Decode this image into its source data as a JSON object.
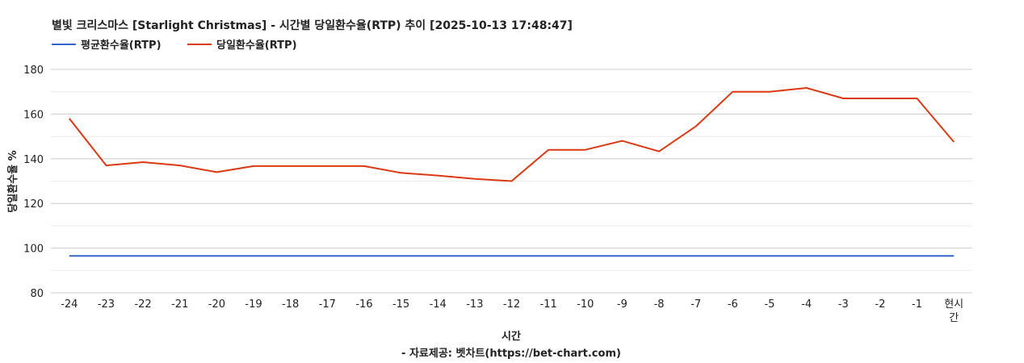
{
  "chart_data": {
    "type": "line",
    "title": "별빛 크리스마스 [Starlight Christmas] - 시간별 당일환수율(RTP) 추이 [2025-10-13 17:48:47]",
    "xlabel": "시간",
    "source_label": "- 자료제공: 벳차트(https://bet-chart.com)",
    "ylabel": "당일환수율 %",
    "ylim": [
      80,
      180
    ],
    "yticks": [
      80,
      100,
      120,
      140,
      160,
      180
    ],
    "grid": true,
    "legend_position": "top-left",
    "categories": [
      "-24",
      "-23",
      "-22",
      "-21",
      "-20",
      "-19",
      "-18",
      "-17",
      "-16",
      "-15",
      "-14",
      "-13",
      "-12",
      "-11",
      "-10",
      "-9",
      "-8",
      "-7",
      "-6",
      "-5",
      "-4",
      "-3",
      "-2",
      "-1",
      "현시간"
    ],
    "series": [
      {
        "name": "평균환수율(RTP)",
        "color": "#3366cc",
        "values": [
          96.5,
          96.5,
          96.5,
          96.5,
          96.5,
          96.5,
          96.5,
          96.5,
          96.5,
          96.5,
          96.5,
          96.5,
          96.5,
          96.5,
          96.5,
          96.5,
          96.5,
          96.5,
          96.5,
          96.5,
          96.5,
          96.5,
          96.5,
          96.5,
          96.5
        ]
      },
      {
        "name": "당일환수율(RTP)",
        "color": "#dc3912",
        "values": [
          158,
          137,
          138.5,
          137,
          134,
          136.7,
          136.7,
          136.7,
          136.7,
          133.7,
          132.5,
          131,
          130,
          144,
          144,
          148,
          143.3,
          154.5,
          170,
          170,
          171.7,
          167,
          167,
          167,
          147.5
        ]
      }
    ]
  }
}
